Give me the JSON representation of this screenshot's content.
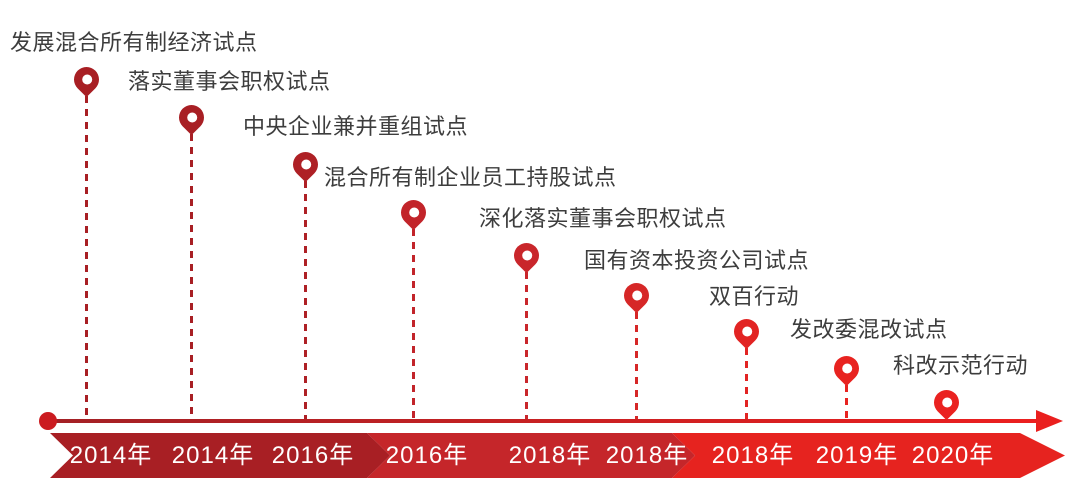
{
  "diagram": {
    "milestones": [
      {
        "label": "发展混合所有制经济试点",
        "year": "2014年",
        "pin_color": "#a81f24"
      },
      {
        "label": "落实董事会职权试点",
        "year": "2014年",
        "pin_color": "#a81f24"
      },
      {
        "label": "中央企业兼并重组试点",
        "year": "2016年",
        "pin_color": "#ae2025"
      },
      {
        "label": "混合所有制企业员工持股试点",
        "year": "2016年",
        "pin_color": "#c2242a"
      },
      {
        "label": "深化落实董事会职权试点",
        "year": "2018年",
        "pin_color": "#c9262b"
      },
      {
        "label": "国有资本投资公司试点",
        "year": "2018年",
        "pin_color": "#d62727"
      },
      {
        "label": "双百行动",
        "year": "2018年",
        "pin_color": "#e22423"
      },
      {
        "label": "发改委混改试点",
        "year": "2019年",
        "pin_color": "#e82320"
      },
      {
        "label": "科改示范行动",
        "year": "2020年",
        "pin_color": "#ea2220"
      }
    ],
    "band_segment_colors": [
      "#a81f24",
      "#c5262a",
      "#e6231f"
    ],
    "axis": {
      "dot_color": "#cb1b20",
      "arrow_color": "#ea1f1e",
      "line_color_start": "#a32025",
      "line_color_end": "#ec1f1f"
    },
    "label_text_color": "#3d3d3d",
    "year_text_color": "#ffffff",
    "background_color": "#ffffff"
  }
}
